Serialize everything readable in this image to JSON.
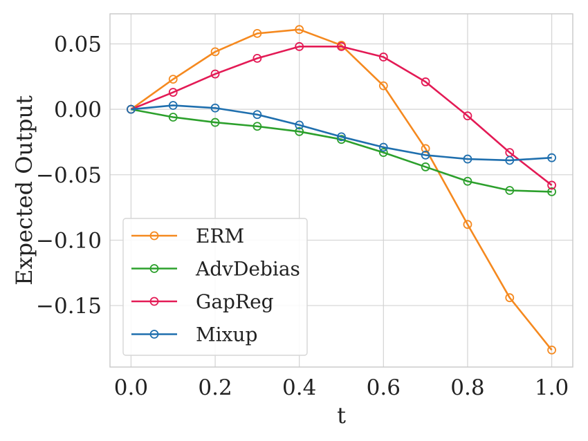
{
  "chart_data": {
    "type": "line",
    "xlabel": "t",
    "ylabel": "Expected Output",
    "xlim": [
      -0.05,
      1.05
    ],
    "ylim": [
      -0.197,
      0.073
    ],
    "grid": true,
    "legend_position": "lower-left",
    "x": [
      0.0,
      0.1,
      0.2,
      0.3,
      0.4,
      0.5,
      0.6,
      0.7,
      0.8,
      0.9,
      1.0
    ],
    "x_ticks": [
      0.0,
      0.2,
      0.4,
      0.6,
      0.8,
      1.0
    ],
    "x_tick_labels": [
      "0.0",
      "0.2",
      "0.4",
      "0.6",
      "0.8",
      "1.0"
    ],
    "y_ticks": [
      0.05,
      0.0,
      -0.05,
      -0.1,
      -0.15
    ],
    "y_tick_labels": [
      "0.05",
      "0.00",
      "−0.05",
      "−0.10",
      "−0.15"
    ],
    "series": [
      {
        "name": "ERM",
        "color": "#f5891f",
        "values": [
          0.0,
          0.023,
          0.044,
          0.058,
          0.061,
          0.049,
          0.018,
          -0.03,
          -0.088,
          -0.144,
          -0.184
        ]
      },
      {
        "name": "AdvDebias",
        "color": "#2ca02c",
        "values": [
          0.0,
          -0.006,
          -0.01,
          -0.013,
          -0.017,
          -0.023,
          -0.033,
          -0.044,
          -0.055,
          -0.062,
          -0.063
        ]
      },
      {
        "name": "GapReg",
        "color": "#e31a55",
        "values": [
          0.0,
          0.013,
          0.027,
          0.039,
          0.048,
          0.048,
          0.04,
          0.021,
          -0.005,
          -0.033,
          -0.058
        ]
      },
      {
        "name": "Mixup",
        "color": "#1f6fae",
        "values": [
          0.0,
          0.003,
          0.001,
          -0.004,
          -0.012,
          -0.021,
          -0.029,
          -0.035,
          -0.038,
          -0.039,
          -0.037
        ]
      }
    ]
  }
}
